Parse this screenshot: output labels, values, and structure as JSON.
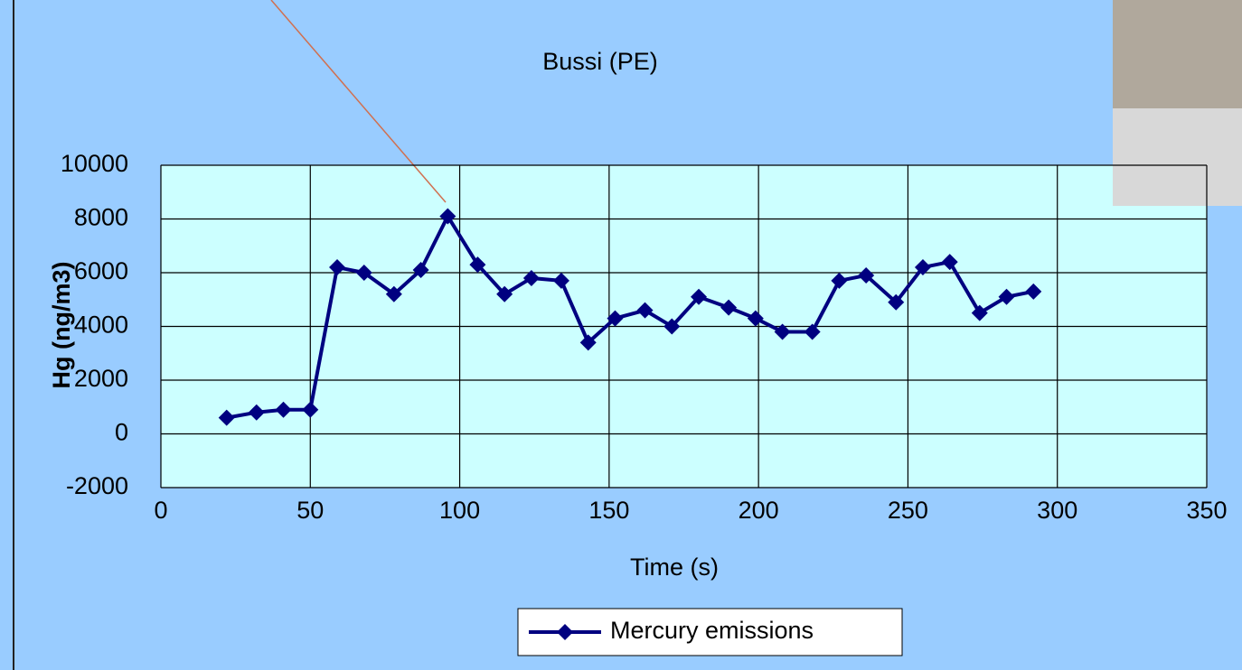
{
  "chart_data": {
    "type": "line",
    "title": "Bussi (PE)",
    "x_label": "Time (s)",
    "y_label": "Hg (ng/m3)",
    "x": [
      22,
      32,
      41,
      50,
      59,
      68,
      78,
      87,
      96,
      106,
      115,
      124,
      134,
      143,
      152,
      162,
      171,
      180,
      190,
      199,
      208,
      218,
      227,
      236,
      246,
      255,
      264,
      274,
      283,
      292
    ],
    "series": [
      {
        "name": "Mercury emissions",
        "color": "#000080",
        "values": [
          600,
          800,
          900,
          900,
          6200,
          6000,
          5200,
          6100,
          8100,
          6300,
          5200,
          5800,
          5700,
          3400,
          4300,
          4600,
          4000,
          5100,
          4700,
          4300,
          3800,
          3800,
          5700,
          5900,
          4900,
          6200,
          6400,
          4500,
          5100,
          5300
        ]
      }
    ],
    "xlim": [
      0,
      350
    ],
    "xticks": [
      0,
      50,
      100,
      150,
      200,
      250,
      300,
      350
    ],
    "ylim": [
      -2000,
      10000
    ],
    "yticks": [
      -2000,
      0,
      2000,
      4000,
      6000,
      8000,
      10000
    ],
    "grid": true,
    "legend": "bottom"
  }
}
